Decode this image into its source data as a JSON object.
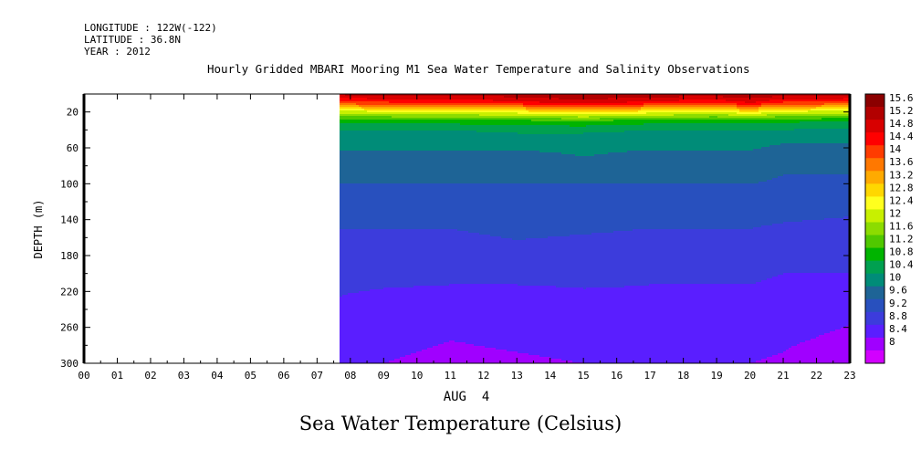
{
  "meta": {
    "longitude": "LONGITUDE : 122W(-122)",
    "latitude": "LATITUDE : 36.8N",
    "year": "YEAR : 2012"
  },
  "chart_data": {
    "type": "heatmap",
    "title": "Hourly Gridded MBARI Mooring M1 Sea Water Temperature and Salinity Observations",
    "bottom_title": "Sea Water Temperature (Celsius)",
    "xlabel": "AUG  4",
    "ylabel": "DEPTH (m)",
    "x_ticks": [
      "00",
      "01",
      "02",
      "03",
      "04",
      "05",
      "06",
      "07",
      "08",
      "09",
      "10",
      "11",
      "12",
      "13",
      "14",
      "15",
      "16",
      "17",
      "18",
      "19",
      "20",
      "21",
      "22",
      "23"
    ],
    "y_ticks": [
      "20",
      "60",
      "100",
      "140",
      "180",
      "220",
      "260",
      "300"
    ],
    "xlim": [
      0,
      23
    ],
    "ylim_depth": [
      0,
      300
    ],
    "y_reversed": true,
    "data_start_hour": 7.7,
    "hours": [
      7.7,
      9,
      11,
      13,
      15,
      17,
      19,
      20,
      21,
      23
    ],
    "depths": [
      0,
      10,
      20,
      30,
      40,
      55,
      70,
      90,
      110,
      130,
      150,
      175,
      200,
      225,
      250,
      275,
      300
    ],
    "temperature": [
      [
        15.3,
        15.4,
        15.4,
        15.5,
        15.6,
        15.5,
        15.5,
        15.6,
        15.5,
        15.4
      ],
      [
        14.2,
        14.3,
        14.4,
        14.6,
        15.0,
        14.6,
        14.4,
        14.8,
        14.3,
        14.2
      ],
      [
        12.2,
        12.3,
        12.4,
        12.6,
        13.0,
        12.6,
        12.4,
        12.8,
        12.3,
        12.2
      ],
      [
        10.9,
        11.0,
        11.0,
        11.1,
        11.2,
        11.0,
        10.9,
        11.0,
        10.9,
        10.8
      ],
      [
        10.4,
        10.4,
        10.4,
        10.5,
        10.5,
        10.4,
        10.4,
        10.4,
        10.4,
        10.3
      ],
      [
        10.1,
        10.1,
        10.1,
        10.1,
        10.1,
        10.1,
        10.1,
        10.1,
        10.0,
        10.0
      ],
      [
        9.9,
        9.9,
        9.9,
        9.9,
        10.0,
        9.9,
        9.9,
        9.9,
        9.8,
        9.8
      ],
      [
        9.7,
        9.7,
        9.7,
        9.7,
        9.7,
        9.7,
        9.7,
        9.7,
        9.6,
        9.6
      ],
      [
        9.5,
        9.5,
        9.5,
        9.5,
        9.5,
        9.5,
        9.5,
        9.5,
        9.5,
        9.4
      ],
      [
        9.35,
        9.35,
        9.3,
        9.4,
        9.35,
        9.35,
        9.35,
        9.35,
        9.3,
        9.25
      ],
      [
        9.2,
        9.2,
        9.2,
        9.3,
        9.25,
        9.2,
        9.2,
        9.2,
        9.15,
        9.1
      ],
      [
        9.05,
        9.05,
        9.0,
        9.1,
        9.05,
        9.0,
        9.0,
        9.0,
        8.95,
        8.95
      ],
      [
        8.9,
        8.9,
        8.9,
        8.9,
        8.9,
        8.85,
        8.85,
        8.85,
        8.8,
        8.8
      ],
      [
        8.8,
        8.75,
        8.7,
        8.7,
        8.75,
        8.75,
        8.75,
        8.75,
        8.7,
        8.65
      ],
      [
        8.7,
        8.6,
        8.55,
        8.55,
        8.6,
        8.6,
        8.6,
        8.6,
        8.6,
        8.45
      ],
      [
        8.6,
        8.5,
        8.4,
        8.45,
        8.5,
        8.5,
        8.5,
        8.5,
        8.45,
        8.3
      ],
      [
        8.5,
        8.4,
        8.3,
        8.35,
        8.4,
        8.4,
        8.4,
        8.4,
        8.35,
        8.15
      ]
    ],
    "colorbar": {
      "levels": [
        "15.6",
        "15.2",
        "14.8",
        "14.4",
        "14",
        "13.6",
        "13.2",
        "12.8",
        "12.4",
        "12",
        "11.6",
        "11.2",
        "10.8",
        "10.4",
        "10",
        "9.6",
        "9.2",
        "8.8",
        "8.4",
        "8"
      ],
      "colors": [
        "#8b0000",
        "#b20000",
        "#d80000",
        "#ff0000",
        "#ff3c00",
        "#ff7800",
        "#ffaa00",
        "#ffd700",
        "#ffff1e",
        "#c8f000",
        "#8cdc00",
        "#50c800",
        "#00b400",
        "#00a050",
        "#008c78",
        "#1e6496",
        "#2850be",
        "#3c3cdc",
        "#5a1eff",
        "#a000ff",
        "#d200ff"
      ]
    }
  }
}
